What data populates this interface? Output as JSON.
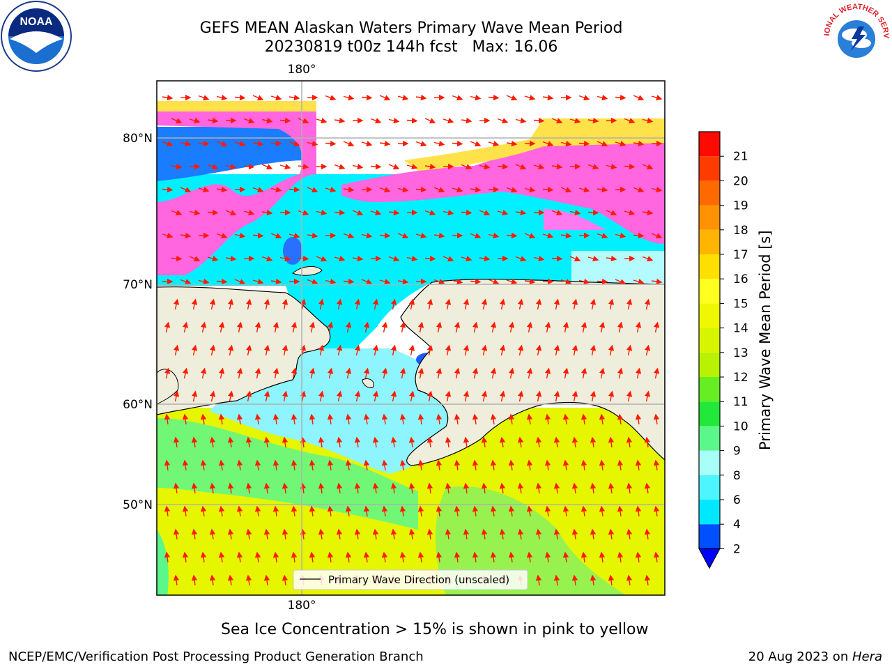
{
  "title": {
    "line1": "GEFS MEAN Alaskan Waters Primary Wave Mean Period",
    "line2": "20230819 t00z 144h fcst   Max: 16.06"
  },
  "logos": {
    "left": {
      "icon": "noaa-logo",
      "text": "NOAA"
    },
    "right": {
      "icon": "nws-logo",
      "text": "NATIONAL WEATHER SERVICE"
    }
  },
  "map": {
    "lon_labels": [
      "180°",
      "180°"
    ],
    "lat_labels": [
      "80°N",
      "70°N",
      "60°N",
      "50°N"
    ],
    "legend_label": "Primary Wave Direction (unscaled)"
  },
  "colorbar": {
    "label": "Primary Wave Mean Period [s]",
    "ticks": [
      "2",
      "4",
      "6",
      "8",
      "9",
      "10",
      "11",
      "12",
      "13",
      "14",
      "15",
      "16",
      "17",
      "18",
      "19",
      "20",
      "21"
    ],
    "colors": [
      "#0050ff",
      "#00e8ff",
      "#4cf5ff",
      "#a8fff8",
      "#5cf78a",
      "#22e83a",
      "#66ee22",
      "#b8f200",
      "#d8f500",
      "#f0f800",
      "#ffff20",
      "#ffdf00",
      "#ffb400",
      "#ff9200",
      "#ff6a00",
      "#ff3c00",
      "#ff0a00"
    ],
    "extend_color": "#0000ff"
  },
  "notes": {
    "ice": "Sea Ice Concentration > 15% is shown in pink to yellow"
  },
  "footer": {
    "left": "NCEP/EMC/Verification Post Processing Product Generation Branch",
    "right_prefix": "20 Aug 2023 on ",
    "right_host": "Hera"
  }
}
